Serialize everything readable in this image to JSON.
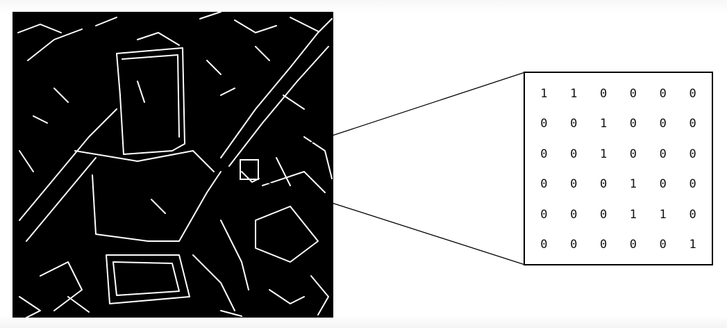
{
  "figure": {
    "description_visible": "edge-detected image with magnified binary patch",
    "zoom_box_color": "#ffffff",
    "connector_color": "#000000",
    "image_background": "#000000",
    "edge_color": "#ffffff"
  },
  "matrix": {
    "rows": [
      [
        "1",
        "1",
        "0",
        "0",
        "0",
        "0"
      ],
      [
        "0",
        "0",
        "1",
        "0",
        "0",
        "0"
      ],
      [
        "0",
        "0",
        "1",
        "0",
        "0",
        "0"
      ],
      [
        "0",
        "0",
        "0",
        "1",
        "0",
        "0"
      ],
      [
        "0",
        "0",
        "0",
        "1",
        "1",
        "0"
      ],
      [
        "0",
        "0",
        "0",
        "0",
        "0",
        "1"
      ]
    ]
  }
}
